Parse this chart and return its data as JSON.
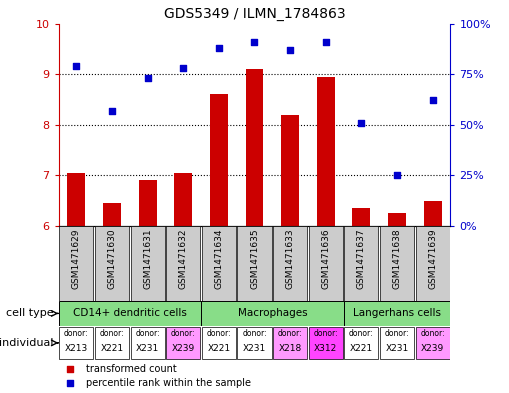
{
  "title": "GDS5349 / ILMN_1784863",
  "samples": [
    "GSM1471629",
    "GSM1471630",
    "GSM1471631",
    "GSM1471632",
    "GSM1471634",
    "GSM1471635",
    "GSM1471633",
    "GSM1471636",
    "GSM1471637",
    "GSM1471638",
    "GSM1471639"
  ],
  "transformed_count": [
    7.05,
    6.45,
    6.9,
    7.05,
    8.6,
    9.1,
    8.2,
    8.95,
    6.35,
    6.25,
    6.5
  ],
  "percentile_rank": [
    79,
    57,
    73,
    78,
    88,
    91,
    87,
    91,
    51,
    25,
    62
  ],
  "ylim_left": [
    6,
    10
  ],
  "ylim_right": [
    0,
    100
  ],
  "yticks_left": [
    6,
    7,
    8,
    9,
    10
  ],
  "yticks_right": [
    0,
    25,
    50,
    75,
    100
  ],
  "ytick_labels_right": [
    "0%",
    "25%",
    "50%",
    "75%",
    "100%"
  ],
  "bar_color": "#CC0000",
  "dot_color": "#0000CC",
  "group_spans": [
    [
      0,
      4,
      "CD14+ dendritic cells"
    ],
    [
      4,
      8,
      "Macrophages"
    ],
    [
      8,
      11,
      "Langerhans cells"
    ]
  ],
  "group_color": "#88DD88",
  "individuals": [
    "X213",
    "X221",
    "X231",
    "X239",
    "X221",
    "X231",
    "X218",
    "X312",
    "X221",
    "X231",
    "X239"
  ],
  "ind_colors": [
    "#FFFFFF",
    "#FFFFFF",
    "#FFFFFF",
    "#FF99FF",
    "#FFFFFF",
    "#FFFFFF",
    "#FF99FF",
    "#FF44FF",
    "#FFFFFF",
    "#FFFFFF",
    "#FF99FF"
  ],
  "axis_color_left": "#CC0000",
  "axis_color_right": "#0000CC",
  "xticklabel_bg": "#CCCCCC"
}
